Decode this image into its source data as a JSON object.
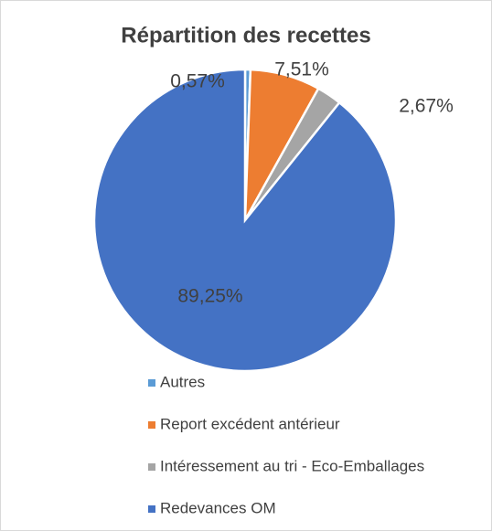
{
  "chart_data": {
    "type": "pie",
    "title": "Répartition des recettes",
    "categories": [
      "Autres",
      "Report excédent antérieur",
      "Intéressement au tri - Eco-Emballages",
      "Redevances OM"
    ],
    "values": [
      0.57,
      7.51,
      2.67,
      89.25
    ],
    "value_labels": [
      "0,57%",
      "7,51%",
      "2,67%",
      "89,25%"
    ],
    "colors": [
      "#5b9bd5",
      "#ed7d31",
      "#a5a5a5",
      "#4472c4"
    ],
    "legend": "bottom"
  }
}
